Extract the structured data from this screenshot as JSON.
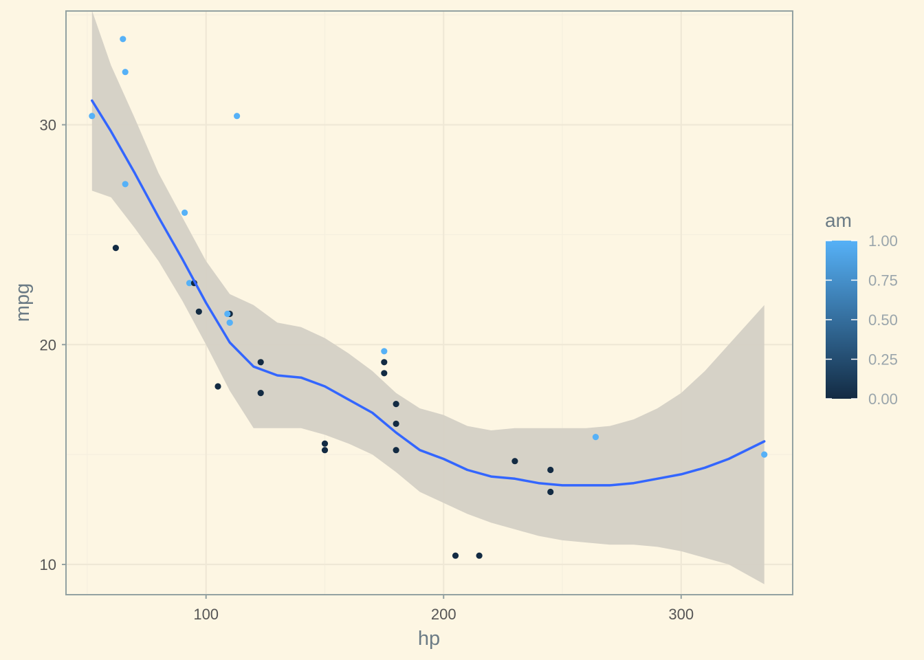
{
  "chart_data": {
    "type": "scatter",
    "xlabel": "hp",
    "ylabel": "mpg",
    "xlim": [
      41.05,
      346.95
    ],
    "ylim": [
      8.625,
      35.175
    ],
    "x_ticks": [
      100,
      200,
      300
    ],
    "x_tick_labels": [
      "100",
      "200",
      "300"
    ],
    "y_ticks": [
      10,
      20,
      30
    ],
    "y_tick_labels": [
      "10",
      "20",
      "30"
    ],
    "grid": true,
    "color_legend": {
      "title": "am",
      "position": "right",
      "low": 0,
      "high": 1,
      "ticks": [
        1.0,
        0.75,
        0.5,
        0.25,
        0.0
      ],
      "tick_labels": [
        "1.00",
        "0.75",
        "0.50",
        "0.25",
        "0.00"
      ],
      "low_color": "#132b43",
      "high_color": "#56b1f7"
    },
    "series": [
      {
        "type": "scatter",
        "x": [
          110,
          110,
          93,
          110,
          175,
          105,
          245,
          62,
          95,
          123,
          123,
          180,
          180,
          180,
          205,
          215,
          230,
          66,
          52,
          65,
          97,
          150,
          150,
          245,
          175,
          66,
          91,
          113,
          264,
          175,
          335,
          109
        ],
        "y": [
          21.0,
          21.0,
          22.8,
          21.4,
          18.7,
          18.1,
          14.3,
          24.4,
          22.8,
          19.2,
          17.8,
          16.4,
          17.3,
          15.2,
          10.4,
          10.4,
          14.7,
          32.4,
          30.4,
          33.9,
          21.5,
          15.5,
          15.2,
          13.3,
          19.2,
          27.3,
          26.0,
          30.4,
          15.8,
          19.7,
          15.0,
          21.4
        ],
        "am": [
          1,
          1,
          1,
          0,
          0,
          0,
          0,
          0,
          0,
          0,
          0,
          0,
          0,
          0,
          0,
          0,
          0,
          1,
          1,
          1,
          0,
          0,
          0,
          0,
          0,
          1,
          1,
          1,
          1,
          1,
          1,
          1
        ]
      },
      {
        "type": "line",
        "method": "loess",
        "color": "#3366ff",
        "x": [
          52,
          60,
          70,
          80,
          90,
          100,
          110,
          120,
          130,
          140,
          150,
          160,
          170,
          180,
          190,
          200,
          210,
          220,
          230,
          240,
          250,
          260,
          270,
          280,
          290,
          300,
          310,
          320,
          335
        ],
        "y": [
          31.1,
          29.7,
          27.8,
          25.8,
          23.9,
          21.9,
          20.1,
          19.0,
          18.6,
          18.5,
          18.1,
          17.5,
          16.9,
          16.0,
          15.2,
          14.8,
          14.3,
          14.0,
          13.9,
          13.7,
          13.6,
          13.6,
          13.6,
          13.7,
          13.9,
          14.1,
          14.4,
          14.8,
          15.6
        ],
        "ci_lower": [
          27.0,
          26.7,
          25.3,
          23.8,
          22.0,
          20.0,
          17.9,
          16.2,
          16.2,
          16.2,
          15.9,
          15.5,
          15.0,
          14.2,
          13.3,
          12.8,
          12.3,
          11.9,
          11.6,
          11.3,
          11.1,
          11.0,
          10.9,
          10.9,
          10.8,
          10.6,
          10.3,
          10.0,
          9.1
        ],
        "ci_upper": [
          35.2,
          32.7,
          30.3,
          27.8,
          25.8,
          23.8,
          22.3,
          21.8,
          21.0,
          20.8,
          20.3,
          19.6,
          18.8,
          17.8,
          17.1,
          16.8,
          16.3,
          16.1,
          16.2,
          16.2,
          16.2,
          16.2,
          16.3,
          16.6,
          17.1,
          17.8,
          18.8,
          20.0,
          21.8
        ],
        "ci_color": "#d4d0c5"
      }
    ]
  },
  "colors": {
    "background": "#fdf6e3",
    "grid_major": "#efe8d6",
    "grid_minor": "#f5efdf",
    "border": "#93a1a1"
  }
}
